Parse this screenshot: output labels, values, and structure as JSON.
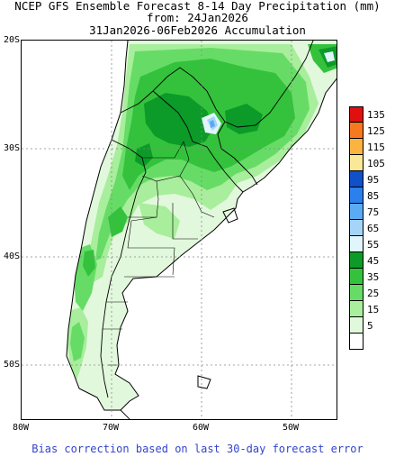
{
  "title": {
    "line1": "NCEP GFS Ensemble Forecast 8-14 Day Precipitation (mm)",
    "line2": "from: 24Jan2026",
    "line3": "31Jan2026-06Feb2026 Accumulation"
  },
  "footer": "Bias correction based on last 30-day forecast error",
  "axes": {
    "lat_labels": [
      "20S",
      "30S",
      "40S",
      "50S"
    ],
    "lon_labels": [
      "80W",
      "70W",
      "60W",
      "50W"
    ]
  },
  "legend": {
    "levels": [
      {
        "label": "135",
        "color": "#e01010"
      },
      {
        "label": "125",
        "color": "#f87820"
      },
      {
        "label": "115",
        "color": "#fcb440"
      },
      {
        "label": "105",
        "color": "#f8e898"
      },
      {
        "label": "95",
        "color": "#1050c8"
      },
      {
        "label": "85",
        "color": "#2c80ec"
      },
      {
        "label": "75",
        "color": "#5aaaf4"
      },
      {
        "label": "65",
        "color": "#a6d4f8"
      },
      {
        "label": "55",
        "color": "#e0f6fc"
      },
      {
        "label": "45",
        "color": "#0c9a28"
      },
      {
        "label": "35",
        "color": "#34c23c"
      },
      {
        "label": "25",
        "color": "#66dc66"
      },
      {
        "label": "15",
        "color": "#a8ee9c"
      },
      {
        "label": "5",
        "color": "#e2f8dc"
      },
      {
        "label": "",
        "color": "#ffffff"
      }
    ]
  },
  "colors": {
    "coast": "#000000",
    "grid": "#888888",
    "ocean": "#ffffff",
    "footer_text": "#3344cc"
  }
}
